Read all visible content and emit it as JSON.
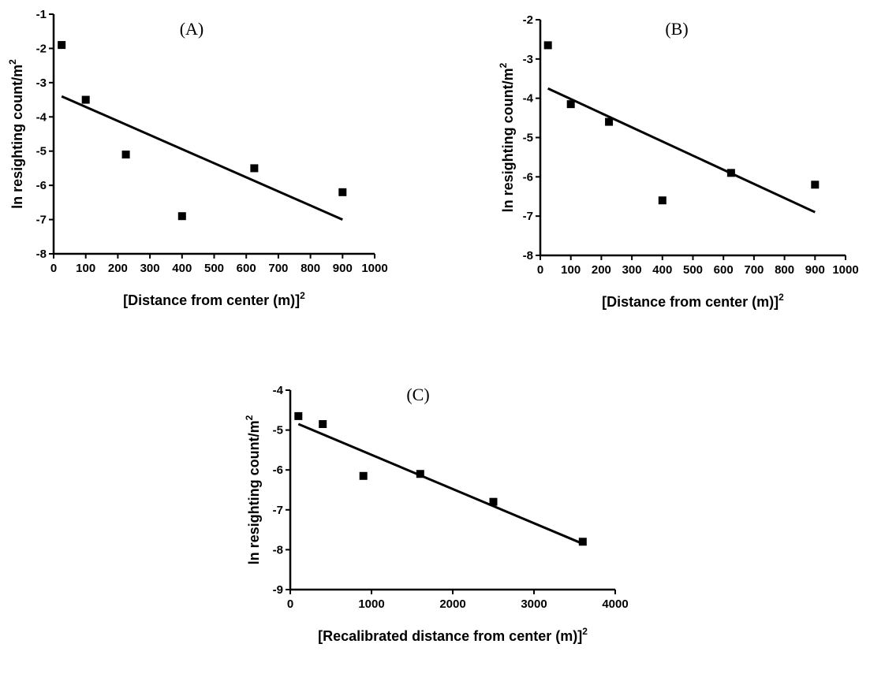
{
  "chart_data": [
    {
      "type": "scatter",
      "panel_label": "(A)",
      "xlabel": "[Distance from center (m)]",
      "xlabel_sup": "2",
      "ylabel": "ln resighting count/m",
      "ylabel_sup": "2",
      "xlim": [
        0,
        1000
      ],
      "ylim": [
        -8,
        -1
      ],
      "xticks": [
        0,
        100,
        200,
        300,
        400,
        500,
        600,
        700,
        800,
        900,
        1000
      ],
      "yticks": [
        -8,
        -7,
        -6,
        -5,
        -4,
        -3,
        -2,
        -1
      ],
      "points": [
        {
          "x": 25,
          "y": -1.9
        },
        {
          "x": 100,
          "y": -3.5
        },
        {
          "x": 225,
          "y": -5.1
        },
        {
          "x": 400,
          "y": -6.9
        },
        {
          "x": 625,
          "y": -5.5
        },
        {
          "x": 900,
          "y": -6.2
        }
      ],
      "fit_line": [
        {
          "x": 25,
          "y": -3.4
        },
        {
          "x": 900,
          "y": -7.0
        }
      ]
    },
    {
      "type": "scatter",
      "panel_label": "(B)",
      "xlabel": "[Distance from center (m)]",
      "xlabel_sup": "2",
      "ylabel": "ln resighting count/m",
      "ylabel_sup": "2",
      "xlim": [
        0,
        1000
      ],
      "ylim": [
        -8,
        -2
      ],
      "xticks": [
        0,
        100,
        200,
        300,
        400,
        500,
        600,
        700,
        800,
        900,
        1000
      ],
      "yticks": [
        -8,
        -7,
        -6,
        -5,
        -4,
        -3,
        -2
      ],
      "points": [
        {
          "x": 25,
          "y": -2.65
        },
        {
          "x": 100,
          "y": -4.15
        },
        {
          "x": 225,
          "y": -4.6
        },
        {
          "x": 400,
          "y": -6.6
        },
        {
          "x": 625,
          "y": -5.9
        },
        {
          "x": 900,
          "y": -6.2
        }
      ],
      "fit_line": [
        {
          "x": 25,
          "y": -3.75
        },
        {
          "x": 900,
          "y": -6.9
        }
      ]
    },
    {
      "type": "scatter",
      "panel_label": "(C)",
      "xlabel": "[Recalibrated distance from center (m)]",
      "xlabel_sup": "2",
      "ylabel": "ln resighting count/m",
      "ylabel_sup": "2",
      "xlim": [
        0,
        4000
      ],
      "ylim": [
        -9,
        -4
      ],
      "xticks": [
        0,
        1000,
        2000,
        3000,
        4000
      ],
      "yticks": [
        -9,
        -8,
        -7,
        -6,
        -5,
        -4
      ],
      "points": [
        {
          "x": 100,
          "y": -4.65
        },
        {
          "x": 400,
          "y": -4.85
        },
        {
          "x": 900,
          "y": -6.15
        },
        {
          "x": 1600,
          "y": -6.1
        },
        {
          "x": 2500,
          "y": -6.8
        },
        {
          "x": 3600,
          "y": -7.8
        }
      ],
      "fit_line": [
        {
          "x": 100,
          "y": -4.85
        },
        {
          "x": 3600,
          "y": -7.85
        }
      ]
    }
  ]
}
